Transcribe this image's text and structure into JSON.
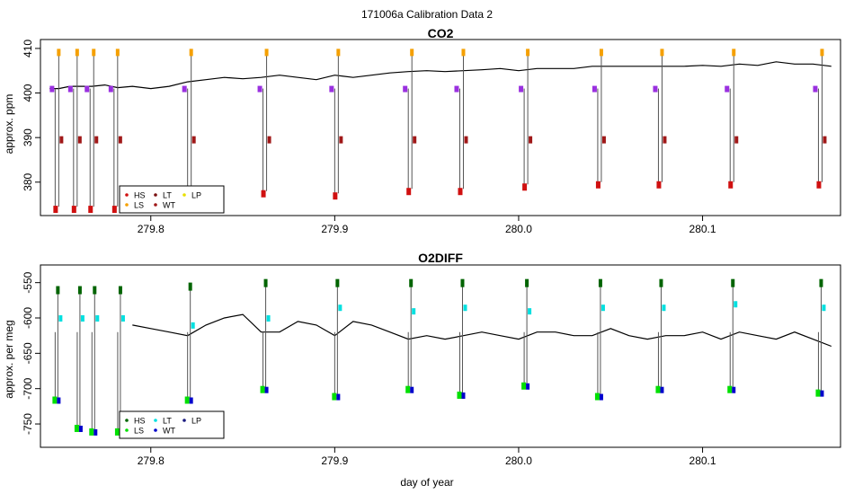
{
  "suptitle": "171006a   Calibration Data 2",
  "xlabel": "day of year",
  "chart_data": [
    {
      "type": "line",
      "title": "CO2",
      "ylabel": "approx. ppm",
      "xlim": [
        279.74,
        280.175
      ],
      "ylim": [
        372.5,
        412
      ],
      "xticks": [
        279.8,
        279.9,
        280.0,
        280.1
      ],
      "xtick_labels": [
        "279.8",
        "279.9",
        "280.0",
        "280.1"
      ],
      "yticks": [
        380,
        390,
        400,
        410
      ],
      "ytick_labels": [
        "380",
        "390",
        "400",
        "410"
      ],
      "series": [
        {
          "name": "data",
          "color": "#000000",
          "x": [
            279.745,
            279.75,
            279.756,
            279.762,
            279.768,
            279.775,
            279.782,
            279.79,
            279.8,
            279.81,
            279.82,
            279.83,
            279.84,
            279.85,
            279.86,
            279.87,
            279.88,
            279.89,
            279.9,
            279.91,
            279.92,
            279.93,
            279.94,
            279.95,
            279.96,
            279.97,
            279.98,
            279.99,
            280.0,
            280.01,
            280.02,
            280.03,
            280.04,
            280.05,
            280.06,
            280.07,
            280.08,
            280.09,
            280.1,
            280.11,
            280.12,
            280.13,
            280.14,
            280.15,
            280.16,
            280.17
          ],
          "y": [
            401,
            401,
            401.5,
            401.5,
            401.5,
            401.8,
            401.2,
            401.5,
            401,
            401.5,
            402.5,
            403,
            403.5,
            403.2,
            403.5,
            404,
            403.5,
            403,
            404,
            403.5,
            404,
            404.5,
            404.8,
            405,
            404.8,
            405,
            405.2,
            405.5,
            405,
            405.5,
            405.5,
            405.5,
            406,
            406,
            406,
            406,
            406,
            406,
            406.2,
            406,
            406.5,
            406.2,
            407,
            406.5,
            406.5,
            406
          ]
        }
      ],
      "calibrations": [
        {
          "x": 279.748,
          "low": 374.5
        },
        {
          "x": 279.758,
          "low": 374.5
        },
        {
          "x": 279.767,
          "low": 374.5
        },
        {
          "x": 279.78,
          "low": 374.5
        },
        {
          "x": 279.82,
          "low": 377
        },
        {
          "x": 279.861,
          "low": 378
        },
        {
          "x": 279.9,
          "low": 377.5
        },
        {
          "x": 279.94,
          "low": 378.5
        },
        {
          "x": 279.968,
          "low": 378.5
        },
        {
          "x": 280.003,
          "low": 379.5
        },
        {
          "x": 280.043,
          "low": 380
        },
        {
          "x": 280.076,
          "low": 380
        },
        {
          "x": 280.115,
          "low": 380
        },
        {
          "x": 280.163,
          "low": 380
        }
      ],
      "legend": {
        "entries": [
          {
            "label": "HS",
            "color": "#d01010"
          },
          {
            "label": "LS",
            "color": "#f5a000"
          },
          {
            "label": "LT",
            "color": "#7a1010"
          },
          {
            "label": "WT",
            "color": "#a01818"
          },
          {
            "label": "LP",
            "color": "#e8e000"
          }
        ]
      }
    },
    {
      "type": "line",
      "title": "O2DIFF",
      "ylabel": "approx. per meg",
      "xlim": [
        279.74,
        280.175
      ],
      "ylim": [
        -783,
        -525
      ],
      "xticks": [
        279.8,
        279.9,
        280.0,
        280.1
      ],
      "xtick_labels": [
        "279.8",
        "279.9",
        "280.0",
        "280.1"
      ],
      "yticks": [
        -550,
        -600,
        -650,
        -700,
        -750
      ],
      "ytick_labels": [
        "-550",
        "-600",
        "-650",
        "-700",
        "-750"
      ],
      "series": [
        {
          "name": "data",
          "color": "#000000",
          "x": [
            279.79,
            279.8,
            279.81,
            279.82,
            279.83,
            279.84,
            279.85,
            279.86,
            279.87,
            279.88,
            279.89,
            279.9,
            279.91,
            279.92,
            279.93,
            279.94,
            279.95,
            279.96,
            279.97,
            279.98,
            279.99,
            280.0,
            280.01,
            280.02,
            280.03,
            280.04,
            280.05,
            280.06,
            280.07,
            280.08,
            280.09,
            280.1,
            280.11,
            280.12,
            280.13,
            280.14,
            280.15,
            280.16,
            280.17
          ],
          "y": [
            -610,
            -615,
            -620,
            -625,
            -610,
            -600,
            -595,
            -620,
            -620,
            -605,
            -610,
            -625,
            -605,
            -610,
            -620,
            -630,
            -625,
            -630,
            -625,
            -620,
            -625,
            -630,
            -620,
            -620,
            -625,
            -625,
            -615,
            -625,
            -630,
            -625,
            -625,
            -620,
            -630,
            -620,
            -625,
            -630,
            -620,
            -630,
            -640
          ]
        }
      ],
      "calibrations": [
        {
          "x": 279.748,
          "high": -560,
          "mid": -600,
          "low": -715
        },
        {
          "x": 279.76,
          "high": -560,
          "mid": -600,
          "low": -755
        },
        {
          "x": 279.768,
          "high": -560,
          "mid": -600,
          "low": -760
        },
        {
          "x": 279.782,
          "high": -560,
          "mid": -600,
          "low": -760
        },
        {
          "x": 279.82,
          "high": -555,
          "mid": -610,
          "low": -715
        },
        {
          "x": 279.861,
          "high": -550,
          "mid": -600,
          "low": -700
        },
        {
          "x": 279.9,
          "high": -550,
          "mid": -585,
          "low": -710
        },
        {
          "x": 279.94,
          "high": -550,
          "mid": -590,
          "low": -700
        },
        {
          "x": 279.968,
          "high": -550,
          "mid": -585,
          "low": -708
        },
        {
          "x": 280.003,
          "high": -550,
          "mid": -590,
          "low": -695
        },
        {
          "x": 280.043,
          "high": -550,
          "mid": -585,
          "low": -710
        },
        {
          "x": 280.076,
          "high": -550,
          "mid": -585,
          "low": -700
        },
        {
          "x": 280.115,
          "high": -550,
          "mid": -580,
          "low": -700
        },
        {
          "x": 280.163,
          "high": -550,
          "mid": -585,
          "low": -705
        }
      ],
      "legend": {
        "entries": [
          {
            "label": "HS",
            "color": "#006400"
          },
          {
            "label": "LS",
            "color": "#00e000"
          },
          {
            "label": "LT",
            "color": "#00e0e0"
          },
          {
            "label": "WT",
            "color": "#0000cc"
          },
          {
            "label": "LP",
            "color": "#1a1a80"
          }
        ]
      }
    }
  ]
}
